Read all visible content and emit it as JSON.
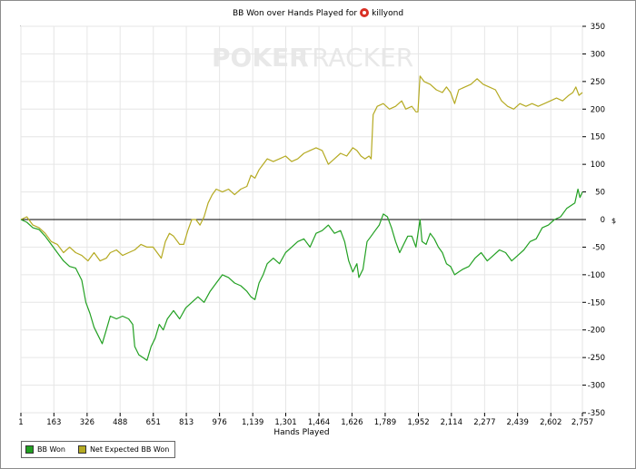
{
  "chart_data": {
    "type": "line",
    "title_prefix": "BB Won over Hands Played for",
    "player_name": "killyond",
    "watermark": {
      "left": "POKER",
      "right": "TRACKER"
    },
    "xlabel": "Hands Played",
    "x_ticks": [
      {
        "value": 1,
        "label": "1"
      },
      {
        "value": 163,
        "label": "163"
      },
      {
        "value": 326,
        "label": "326"
      },
      {
        "value": 488,
        "label": "488"
      },
      {
        "value": 651,
        "label": "651"
      },
      {
        "value": 813,
        "label": "813"
      },
      {
        "value": 976,
        "label": "976"
      },
      {
        "value": 1139,
        "label": "1,139"
      },
      {
        "value": 1301,
        "label": "1,301"
      },
      {
        "value": 1464,
        "label": "1,464"
      },
      {
        "value": 1626,
        "label": "1,626"
      },
      {
        "value": 1789,
        "label": "1,789"
      },
      {
        "value": 1952,
        "label": "1,952"
      },
      {
        "value": 2114,
        "label": "2,114"
      },
      {
        "value": 2277,
        "label": "2,277"
      },
      {
        "value": 2439,
        "label": "2,439"
      },
      {
        "value": 2602,
        "label": "2,602"
      },
      {
        "value": 2757,
        "label": "2,757"
      }
    ],
    "y_ticks": [
      350,
      300,
      250,
      200,
      150,
      100,
      50,
      0,
      -50,
      -100,
      -150,
      -200,
      -250,
      -300,
      -350
    ],
    "xlim": [
      1,
      2757
    ],
    "ylim": [
      -350,
      350
    ],
    "right_axis_unit": "$",
    "series": [
      {
        "name": "BB Won",
        "color": "#22a022",
        "points": [
          [
            1,
            0
          ],
          [
            30,
            -5
          ],
          [
            60,
            -15
          ],
          [
            90,
            -18
          ],
          [
            120,
            -30
          ],
          [
            150,
            -45
          ],
          [
            180,
            -60
          ],
          [
            210,
            -75
          ],
          [
            240,
            -85
          ],
          [
            270,
            -88
          ],
          [
            300,
            -110
          ],
          [
            320,
            -150
          ],
          [
            340,
            -170
          ],
          [
            360,
            -195
          ],
          [
            380,
            -210
          ],
          [
            400,
            -225
          ],
          [
            420,
            -200
          ],
          [
            440,
            -175
          ],
          [
            470,
            -180
          ],
          [
            500,
            -175
          ],
          [
            530,
            -180
          ],
          [
            550,
            -190
          ],
          [
            560,
            -230
          ],
          [
            580,
            -245
          ],
          [
            600,
            -250
          ],
          [
            620,
            -255
          ],
          [
            640,
            -230
          ],
          [
            660,
            -215
          ],
          [
            680,
            -190
          ],
          [
            700,
            -200
          ],
          [
            720,
            -180
          ],
          [
            750,
            -165
          ],
          [
            780,
            -180
          ],
          [
            810,
            -160
          ],
          [
            840,
            -150
          ],
          [
            870,
            -140
          ],
          [
            900,
            -150
          ],
          [
            930,
            -130
          ],
          [
            960,
            -115
          ],
          [
            990,
            -100
          ],
          [
            1020,
            -105
          ],
          [
            1050,
            -115
          ],
          [
            1080,
            -120
          ],
          [
            1110,
            -130
          ],
          [
            1130,
            -140
          ],
          [
            1150,
            -145
          ],
          [
            1170,
            -115
          ],
          [
            1190,
            -100
          ],
          [
            1210,
            -80
          ],
          [
            1240,
            -70
          ],
          [
            1270,
            -80
          ],
          [
            1300,
            -60
          ],
          [
            1330,
            -50
          ],
          [
            1360,
            -40
          ],
          [
            1390,
            -35
          ],
          [
            1420,
            -50
          ],
          [
            1450,
            -25
          ],
          [
            1480,
            -20
          ],
          [
            1510,
            -10
          ],
          [
            1540,
            -25
          ],
          [
            1570,
            -20
          ],
          [
            1590,
            -40
          ],
          [
            1610,
            -75
          ],
          [
            1630,
            -95
          ],
          [
            1650,
            -80
          ],
          [
            1660,
            -105
          ],
          [
            1680,
            -90
          ],
          [
            1700,
            -40
          ],
          [
            1720,
            -30
          ],
          [
            1740,
            -20
          ],
          [
            1760,
            -10
          ],
          [
            1780,
            10
          ],
          [
            1800,
            5
          ],
          [
            1820,
            -15
          ],
          [
            1840,
            -40
          ],
          [
            1860,
            -60
          ],
          [
            1880,
            -45
          ],
          [
            1900,
            -30
          ],
          [
            1920,
            -30
          ],
          [
            1940,
            -50
          ],
          [
            1960,
            0
          ],
          [
            1970,
            -40
          ],
          [
            1990,
            -45
          ],
          [
            2010,
            -25
          ],
          [
            2030,
            -35
          ],
          [
            2050,
            -50
          ],
          [
            2070,
            -60
          ],
          [
            2090,
            -80
          ],
          [
            2110,
            -85
          ],
          [
            2130,
            -100
          ],
          [
            2150,
            -95
          ],
          [
            2170,
            -90
          ],
          [
            2200,
            -85
          ],
          [
            2230,
            -70
          ],
          [
            2260,
            -60
          ],
          [
            2290,
            -75
          ],
          [
            2320,
            -65
          ],
          [
            2350,
            -55
          ],
          [
            2380,
            -60
          ],
          [
            2410,
            -75
          ],
          [
            2440,
            -65
          ],
          [
            2470,
            -55
          ],
          [
            2500,
            -40
          ],
          [
            2530,
            -35
          ],
          [
            2560,
            -15
          ],
          [
            2590,
            -10
          ],
          [
            2620,
            0
          ],
          [
            2650,
            5
          ],
          [
            2680,
            20
          ],
          [
            2700,
            25
          ],
          [
            2720,
            30
          ],
          [
            2735,
            55
          ],
          [
            2745,
            40
          ],
          [
            2757,
            50
          ]
        ]
      },
      {
        "name": "Net Expected BB Won",
        "color": "#b5aa22",
        "points": [
          [
            1,
            0
          ],
          [
            30,
            5
          ],
          [
            60,
            -10
          ],
          [
            90,
            -15
          ],
          [
            120,
            -25
          ],
          [
            150,
            -40
          ],
          [
            180,
            -45
          ],
          [
            210,
            -60
          ],
          [
            240,
            -50
          ],
          [
            270,
            -60
          ],
          [
            300,
            -65
          ],
          [
            330,
            -75
          ],
          [
            360,
            -60
          ],
          [
            390,
            -75
          ],
          [
            420,
            -70
          ],
          [
            440,
            -60
          ],
          [
            470,
            -55
          ],
          [
            500,
            -65
          ],
          [
            530,
            -60
          ],
          [
            560,
            -55
          ],
          [
            590,
            -45
          ],
          [
            620,
            -50
          ],
          [
            650,
            -50
          ],
          [
            670,
            -60
          ],
          [
            690,
            -70
          ],
          [
            710,
            -40
          ],
          [
            730,
            -25
          ],
          [
            750,
            -30
          ],
          [
            780,
            -45
          ],
          [
            800,
            -45
          ],
          [
            820,
            -20
          ],
          [
            840,
            0
          ],
          [
            860,
            0
          ],
          [
            880,
            -10
          ],
          [
            900,
            5
          ],
          [
            920,
            30
          ],
          [
            940,
            45
          ],
          [
            960,
            55
          ],
          [
            990,
            50
          ],
          [
            1020,
            55
          ],
          [
            1050,
            45
          ],
          [
            1080,
            55
          ],
          [
            1110,
            60
          ],
          [
            1130,
            80
          ],
          [
            1150,
            75
          ],
          [
            1170,
            90
          ],
          [
            1190,
            100
          ],
          [
            1210,
            110
          ],
          [
            1240,
            105
          ],
          [
            1270,
            110
          ],
          [
            1300,
            115
          ],
          [
            1330,
            105
          ],
          [
            1360,
            110
          ],
          [
            1390,
            120
          ],
          [
            1420,
            125
          ],
          [
            1450,
            130
          ],
          [
            1480,
            125
          ],
          [
            1510,
            100
          ],
          [
            1540,
            110
          ],
          [
            1570,
            120
          ],
          [
            1600,
            115
          ],
          [
            1630,
            130
          ],
          [
            1650,
            125
          ],
          [
            1670,
            115
          ],
          [
            1690,
            110
          ],
          [
            1710,
            115
          ],
          [
            1720,
            110
          ],
          [
            1730,
            190
          ],
          [
            1750,
            205
          ],
          [
            1780,
            210
          ],
          [
            1810,
            200
          ],
          [
            1840,
            205
          ],
          [
            1870,
            215
          ],
          [
            1890,
            200
          ],
          [
            1920,
            205
          ],
          [
            1940,
            195
          ],
          [
            1950,
            195
          ],
          [
            1960,
            260
          ],
          [
            1980,
            250
          ],
          [
            2010,
            245
          ],
          [
            2040,
            235
          ],
          [
            2070,
            230
          ],
          [
            2090,
            240
          ],
          [
            2110,
            230
          ],
          [
            2130,
            210
          ],
          [
            2150,
            235
          ],
          [
            2180,
            240
          ],
          [
            2210,
            245
          ],
          [
            2240,
            255
          ],
          [
            2270,
            245
          ],
          [
            2300,
            240
          ],
          [
            2330,
            235
          ],
          [
            2360,
            215
          ],
          [
            2390,
            205
          ],
          [
            2420,
            200
          ],
          [
            2450,
            210
          ],
          [
            2480,
            205
          ],
          [
            2510,
            210
          ],
          [
            2540,
            205
          ],
          [
            2570,
            210
          ],
          [
            2600,
            215
          ],
          [
            2630,
            220
          ],
          [
            2660,
            215
          ],
          [
            2690,
            225
          ],
          [
            2710,
            230
          ],
          [
            2725,
            240
          ],
          [
            2740,
            225
          ],
          [
            2757,
            230
          ]
        ]
      }
    ],
    "legend_position": "bottom-left",
    "grid": true
  }
}
